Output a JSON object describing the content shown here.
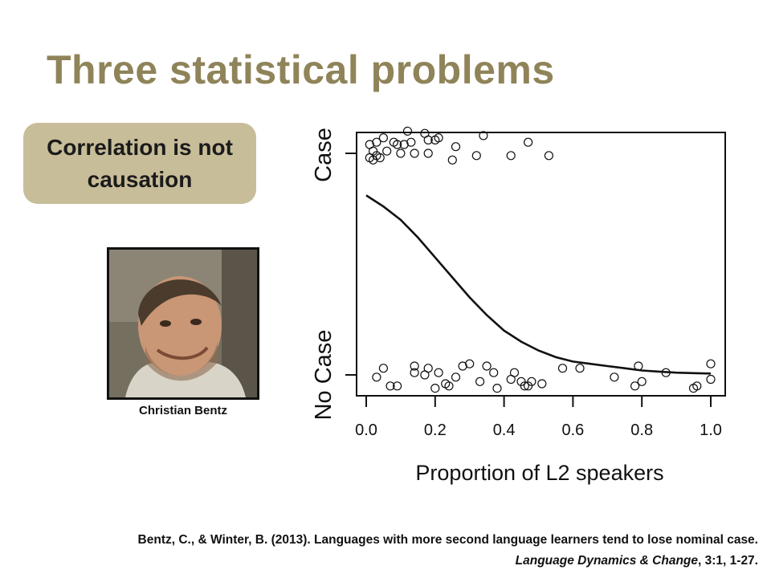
{
  "slide": {
    "title": "Three statistical problems",
    "callout": "Correlation is not\ncausation",
    "photo_caption": "Christian Bentz",
    "reference_line1": "Bentz, C., & Winter, B. (2013). Languages with more second language learners tend to lose nominal case.",
    "reference_journal": "Language Dynamics & Change",
    "reference_rest": ", 3:1, 1-27."
  },
  "colors": {
    "title": "#8f8459",
    "callout_bg": "#c8bd99"
  },
  "chart_data": {
    "type": "scatter",
    "xlabel": "Proportion of L2 speakers",
    "ylabel_top": "Case",
    "ylabel_bottom": "No Case",
    "x_ticks": [
      "0.0",
      "0.2",
      "0.4",
      "0.6",
      "0.8",
      "1.0"
    ],
    "xlim": [
      0,
      1
    ],
    "ylim": [
      0,
      1
    ],
    "grid": false,
    "points_case": [
      [
        0.01,
        1.04
      ],
      [
        0.01,
        0.98
      ],
      [
        0.02,
        0.97
      ],
      [
        0.02,
        1.01
      ],
      [
        0.03,
        1.05
      ],
      [
        0.03,
        0.99
      ],
      [
        0.04,
        0.98
      ],
      [
        0.05,
        1.07
      ],
      [
        0.06,
        1.01
      ],
      [
        0.08,
        1.05
      ],
      [
        0.09,
        1.04
      ],
      [
        0.1,
        1.0
      ],
      [
        0.11,
        1.04
      ],
      [
        0.12,
        1.1
      ],
      [
        0.13,
        1.05
      ],
      [
        0.14,
        1.0
      ],
      [
        0.17,
        1.09
      ],
      [
        0.18,
        1.06
      ],
      [
        0.18,
        1.0
      ],
      [
        0.2,
        1.06
      ],
      [
        0.21,
        1.07
      ],
      [
        0.25,
        0.97
      ],
      [
        0.26,
        1.03
      ],
      [
        0.32,
        0.99
      ],
      [
        0.34,
        1.08
      ],
      [
        0.42,
        0.99
      ],
      [
        0.47,
        1.05
      ],
      [
        0.53,
        0.99
      ]
    ],
    "points_nocase": [
      [
        0.03,
        -0.01
      ],
      [
        0.05,
        0.03
      ],
      [
        0.07,
        -0.05
      ],
      [
        0.09,
        -0.05
      ],
      [
        0.14,
        0.04
      ],
      [
        0.14,
        0.01
      ],
      [
        0.17,
        0.0
      ],
      [
        0.18,
        0.03
      ],
      [
        0.2,
        -0.06
      ],
      [
        0.21,
        0.01
      ],
      [
        0.23,
        -0.04
      ],
      [
        0.24,
        -0.05
      ],
      [
        0.26,
        -0.01
      ],
      [
        0.28,
        0.04
      ],
      [
        0.3,
        0.05
      ],
      [
        0.33,
        -0.03
      ],
      [
        0.35,
        0.04
      ],
      [
        0.37,
        0.01
      ],
      [
        0.38,
        -0.06
      ],
      [
        0.42,
        -0.02
      ],
      [
        0.43,
        0.01
      ],
      [
        0.45,
        -0.03
      ],
      [
        0.46,
        -0.05
      ],
      [
        0.47,
        -0.05
      ],
      [
        0.48,
        -0.03
      ],
      [
        0.51,
        -0.04
      ],
      [
        0.57,
        0.03
      ],
      [
        0.62,
        0.03
      ],
      [
        0.72,
        -0.01
      ],
      [
        0.78,
        -0.05
      ],
      [
        0.79,
        0.04
      ],
      [
        0.8,
        -0.03
      ],
      [
        0.87,
        0.01
      ],
      [
        0.95,
        -0.06
      ],
      [
        0.96,
        -0.05
      ],
      [
        1.0,
        0.05
      ],
      [
        1.0,
        -0.02
      ]
    ],
    "curve": [
      [
        0.0,
        0.81
      ],
      [
        0.05,
        0.76
      ],
      [
        0.1,
        0.7
      ],
      [
        0.15,
        0.62
      ],
      [
        0.2,
        0.53
      ],
      [
        0.25,
        0.44
      ],
      [
        0.3,
        0.35
      ],
      [
        0.35,
        0.27
      ],
      [
        0.4,
        0.2
      ],
      [
        0.45,
        0.15
      ],
      [
        0.5,
        0.11
      ],
      [
        0.55,
        0.08
      ],
      [
        0.6,
        0.06
      ],
      [
        0.65,
        0.05
      ],
      [
        0.7,
        0.04
      ],
      [
        0.75,
        0.03
      ],
      [
        0.8,
        0.02
      ],
      [
        0.85,
        0.015
      ],
      [
        0.9,
        0.01
      ],
      [
        0.95,
        0.008
      ],
      [
        1.0,
        0.006
      ]
    ]
  }
}
